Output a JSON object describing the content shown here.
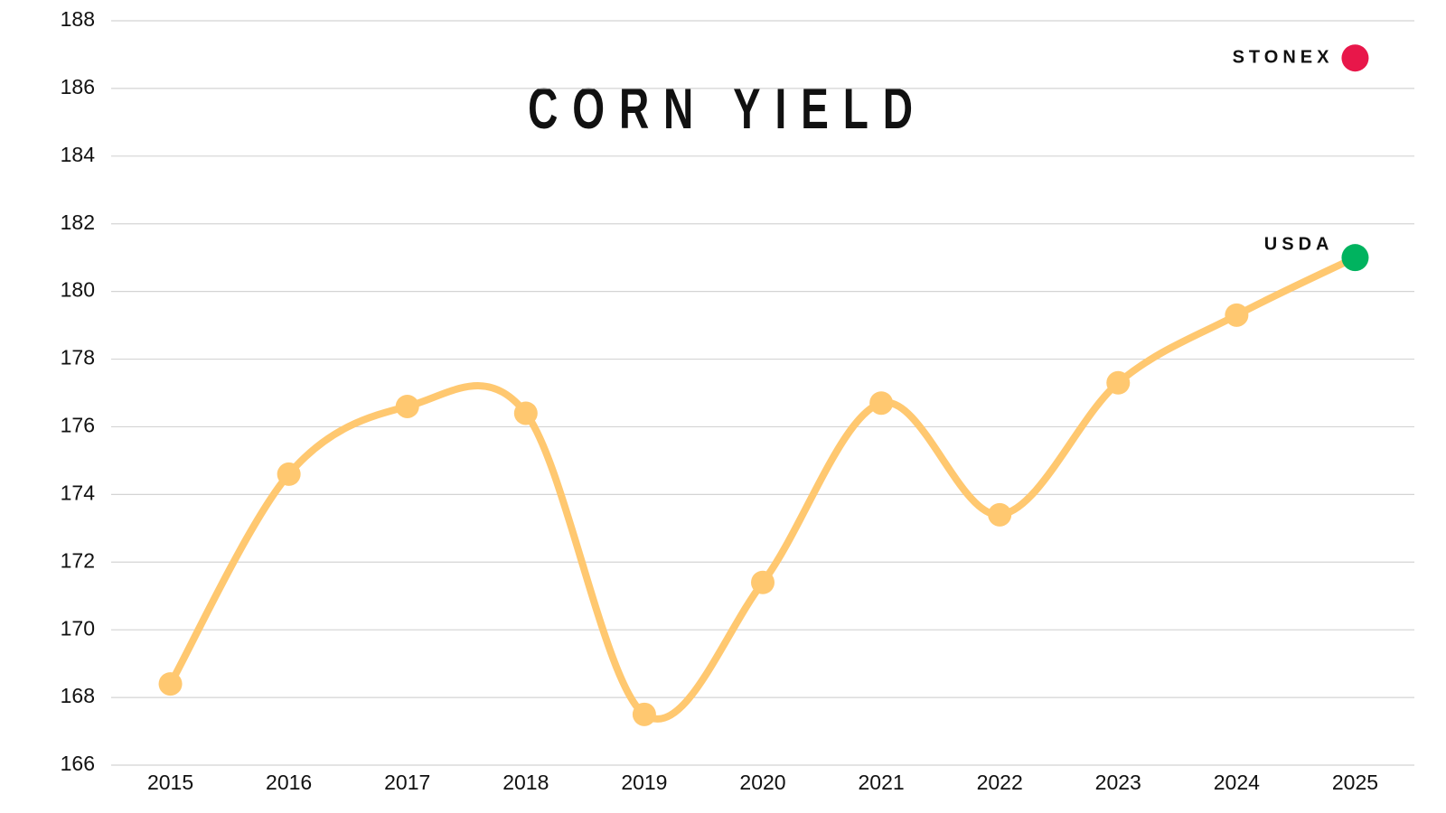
{
  "chart_data": {
    "type": "line",
    "title": "CORN YIELD",
    "categories": [
      "2015",
      "2016",
      "2017",
      "2018",
      "2019",
      "2020",
      "2021",
      "2022",
      "2023",
      "2024",
      "2025"
    ],
    "values": [
      168.4,
      174.6,
      176.6,
      176.4,
      167.5,
      171.4,
      176.7,
      173.4,
      177.3,
      179.3,
      181.0
    ],
    "color": "#ffc870",
    "ylim": [
      166,
      188
    ],
    "yticks": [
      166,
      168,
      170,
      172,
      174,
      176,
      178,
      180,
      182,
      184,
      186,
      188
    ],
    "grid": true,
    "annotations": [
      {
        "label": "USDA",
        "category": "2025",
        "value": 181.0,
        "color": "#00b35f"
      },
      {
        "label": "STONEX",
        "category": "2025",
        "value": 186.9,
        "color": "#e8174a"
      }
    ]
  }
}
